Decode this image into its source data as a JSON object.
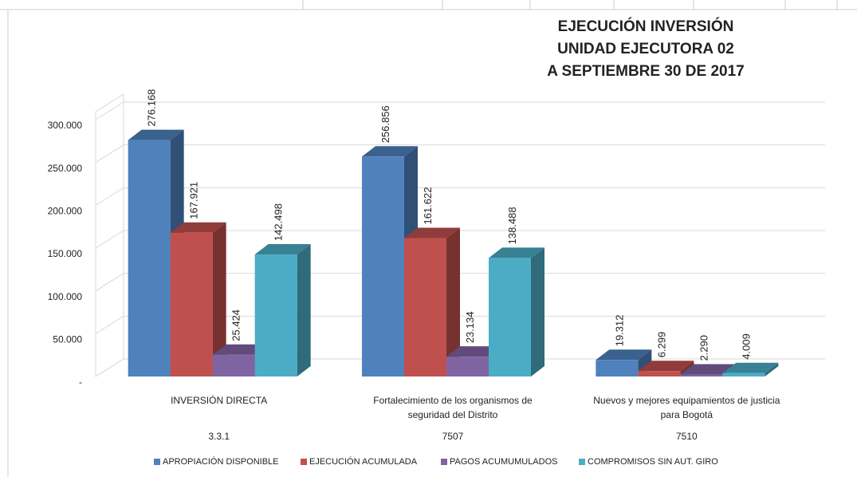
{
  "chart_data": {
    "type": "bar3d",
    "title": [
      "EJECUCIÓN INVERSIÓN",
      "UNIDAD EJECUTORA 02",
      "A SEPTIEMBRE 30 DE 2017"
    ],
    "categories": [
      "INVERSIÓN DIRECTA",
      "Fortalecimiento de los organismos de seguridad del Distrito",
      "Nuevos y mejores equipamientos de justicia para Bogotá"
    ],
    "category_codes": [
      "3.3.1",
      "7507",
      "7510"
    ],
    "series": [
      {
        "name": "APROPIACIÓN DISPONIBLE",
        "color": "#4f81bd",
        "values": [
          276168,
          256856,
          19312
        ],
        "value_labels": [
          "276.168",
          "256.856",
          "19.312"
        ]
      },
      {
        "name": "EJECUCIÓN  ACUMULADA",
        "color": "#c0504d",
        "values": [
          167921,
          161622,
          6299
        ],
        "value_labels": [
          "167.921",
          "161.622",
          "6.299"
        ]
      },
      {
        "name": "PAGOS ACUMUMULADOS",
        "color": "#8064a2",
        "values": [
          25424,
          23134,
          2290
        ],
        "value_labels": [
          "25.424",
          "23.134",
          "2.290"
        ]
      },
      {
        "name": "COMPROMISOS SIN AUT. GIRO",
        "color": "#4bacc6",
        "values": [
          142498,
          138488,
          4009
        ],
        "value_labels": [
          "142.498",
          "138.488",
          "4.009"
        ]
      }
    ],
    "ylim": [
      0,
      300000
    ],
    "yticks": [
      {
        "value": 0,
        "label": "-"
      },
      {
        "value": 50000,
        "label": "50.000"
      },
      {
        "value": 100000,
        "label": "100.000"
      },
      {
        "value": 150000,
        "label": "150.000"
      },
      {
        "value": 200000,
        "label": "200.000"
      },
      {
        "value": 250000,
        "label": "250.000"
      },
      {
        "value": 300000,
        "label": "300.000"
      }
    ],
    "grid": true,
    "legend": "bottom"
  }
}
